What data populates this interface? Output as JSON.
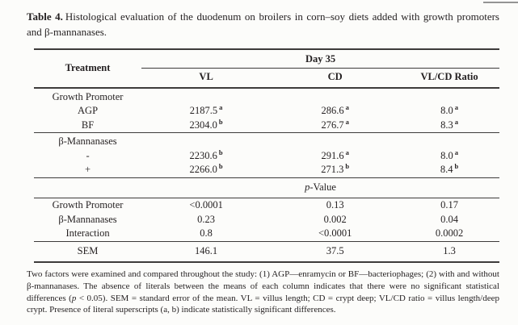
{
  "caption": {
    "label": "Table 4.",
    "text": "Histological evaluation of the duodenum on broilers in corn–soy diets added with growth promoters and β-mannanases."
  },
  "table": {
    "header": {
      "treatment": "Treatment",
      "day_group": "Day 35",
      "columns": [
        "VL",
        "CD",
        "VL/CD Ratio"
      ]
    },
    "sections": [
      {
        "group_label": "Growth Promoter",
        "rows": [
          {
            "treatment": "AGP",
            "cells": [
              {
                "v": "2187.5",
                "sup": "a"
              },
              {
                "v": "286.6",
                "sup": "a"
              },
              {
                "v": "8.0",
                "sup": "a"
              }
            ]
          },
          {
            "treatment": "BF",
            "cells": [
              {
                "v": "2304.0",
                "sup": "b"
              },
              {
                "v": "276.7",
                "sup": "a"
              },
              {
                "v": "8.3",
                "sup": "a"
              }
            ]
          }
        ]
      },
      {
        "group_label": "β-Mannanases",
        "rows": [
          {
            "treatment": "-",
            "cells": [
              {
                "v": "2230.6",
                "sup": "b"
              },
              {
                "v": "291.6",
                "sup": "a"
              },
              {
                "v": "8.0",
                "sup": "a"
              }
            ]
          },
          {
            "treatment": "+",
            "cells": [
              {
                "v": "2266.0",
                "sup": "b"
              },
              {
                "v": "271.3",
                "sup": "b"
              },
              {
                "v": "8.4",
                "sup": "b"
              }
            ]
          }
        ]
      }
    ],
    "p_value_header": {
      "italic": "p",
      "rest": "-Value"
    },
    "p_value_rows": [
      {
        "treatment": "Growth Promoter",
        "cells": [
          "<0.0001",
          "0.13",
          "0.17"
        ]
      },
      {
        "treatment": "β-Mannanases",
        "cells": [
          "0.23",
          "0.002",
          "0.04"
        ]
      },
      {
        "treatment": "Interaction",
        "cells": [
          "0.8",
          "<0.0001",
          "0.0002"
        ]
      }
    ],
    "sem_row": {
      "treatment": "SEM",
      "cells": [
        "146.1",
        "37.5",
        "1.3"
      ]
    }
  },
  "footnote": {
    "segments": [
      {
        "text": "Two factors were examined and compared throughout the study: (1) AGP—enramycin or BF—bacteriophages; (2) with and without β-mannanases. The absence of literals between the means of each column indicates that there were no significant statistical differences (",
        "italic": false
      },
      {
        "text": "p",
        "italic": true
      },
      {
        "text": " < 0.05). SEM = standard error of the mean. VL = villus length; CD = crypt deep; VL/CD ratio = villus length/deep crypt. Presence of literal superscripts (a, b) indicate statistically significant differences.",
        "italic": false
      }
    ]
  }
}
